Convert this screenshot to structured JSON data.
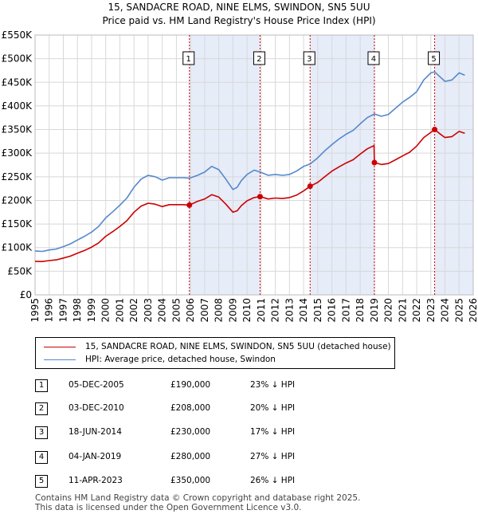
{
  "title_line1": "15, SANDACRE ROAD, NINE ELMS, SWINDON, SN5 5UU",
  "title_line2": "Price paid vs. HM Land Registry's House Price Index (HPI)",
  "colors": {
    "property": "#cc0000",
    "hpi": "#5588cc",
    "shade": "#e6ecf8",
    "grid": "#d8d8d8",
    "marker_line": "#cc0000"
  },
  "legend": {
    "property_label": "15, SANDACRE ROAD, NINE ELMS, SWINDON, SN5 5UU (detached house)",
    "hpi_label": "HPI: Average price, detached house, Swindon"
  },
  "chart_data": {
    "type": "line",
    "ylim": [
      0,
      550000
    ],
    "xlim": [
      1995,
      2026
    ],
    "y_ticks": [
      0,
      50000,
      100000,
      150000,
      200000,
      250000,
      300000,
      350000,
      400000,
      450000,
      500000,
      550000
    ],
    "y_tick_labels": [
      "£0",
      "£50K",
      "£100K",
      "£150K",
      "£200K",
      "£250K",
      "£300K",
      "£350K",
      "£400K",
      "£450K",
      "£500K",
      "£550K"
    ],
    "x_ticks": [
      1995,
      1996,
      1997,
      1998,
      1999,
      2000,
      2001,
      2002,
      2003,
      2004,
      2005,
      2006,
      2007,
      2008,
      2009,
      2010,
      2011,
      2012,
      2013,
      2014,
      2015,
      2016,
      2017,
      2018,
      2019,
      2020,
      2021,
      2022,
      2023,
      2024,
      2025,
      2026
    ],
    "x_tick_labels": [
      "1995",
      "1996",
      "1997",
      "1998",
      "1999",
      "2000",
      "2001",
      "2002",
      "2003",
      "2004",
      "2005",
      "2006",
      "2007",
      "2008",
      "2009",
      "2010",
      "2011",
      "2012",
      "2013",
      "2014",
      "2015",
      "2016",
      "2017",
      "2018",
      "2019",
      "2020",
      "2021",
      "2022",
      "2023",
      "2024",
      "2025",
      "2026"
    ],
    "hpi_series": {
      "name": "HPI: Average price, detached house, Swindon",
      "x": [
        1995.0,
        1995.5,
        1996.0,
        1996.5,
        1997.0,
        1997.5,
        1998.0,
        1998.5,
        1999.0,
        1999.5,
        2000.0,
        2000.5,
        2001.0,
        2001.5,
        2002.0,
        2002.5,
        2003.0,
        2003.5,
        2004.0,
        2004.5,
        2005.0,
        2005.5,
        2005.92,
        2006.5,
        2007.0,
        2007.5,
        2008.0,
        2008.5,
        2009.0,
        2009.3,
        2009.6,
        2010.0,
        2010.5,
        2010.92,
        2011.5,
        2012.0,
        2012.5,
        2013.0,
        2013.5,
        2014.0,
        2014.46,
        2015.0,
        2015.5,
        2016.0,
        2016.5,
        2017.0,
        2017.5,
        2018.0,
        2018.5,
        2019.01,
        2019.5,
        2020.0,
        2020.5,
        2021.0,
        2021.5,
        2022.0,
        2022.5,
        2023.0,
        2023.27,
        2023.6,
        2024.0,
        2024.5,
        2025.0,
        2025.4
      ],
      "values": [
        93000,
        92000,
        95000,
        97000,
        102000,
        108000,
        116000,
        124000,
        133000,
        145000,
        163000,
        176000,
        190000,
        205000,
        228000,
        245000,
        253000,
        250000,
        243000,
        248000,
        248000,
        248000,
        247000,
        253000,
        260000,
        272000,
        265000,
        245000,
        223000,
        228000,
        242000,
        255000,
        264000,
        260000,
        253000,
        255000,
        253000,
        255000,
        262000,
        272000,
        277000,
        290000,
        305000,
        318000,
        330000,
        340000,
        348000,
        362000,
        375000,
        383000,
        378000,
        382000,
        395000,
        408000,
        418000,
        430000,
        455000,
        470000,
        472000,
        463000,
        452000,
        455000,
        470000,
        465000
      ]
    },
    "property_series": {
      "name": "15, SANDACRE ROAD, NINE ELMS, SWINDON, SN5 5UU (detached house)",
      "x": [
        1995.0,
        1995.5,
        1996.0,
        1996.5,
        1997.0,
        1997.5,
        1998.0,
        1998.5,
        1999.0,
        1999.5,
        2000.0,
        2000.5,
        2001.0,
        2001.5,
        2002.0,
        2002.5,
        2003.0,
        2003.5,
        2004.0,
        2004.5,
        2005.0,
        2005.5,
        2005.92,
        2006.5,
        2007.0,
        2007.5,
        2008.0,
        2008.5,
        2009.0,
        2009.3,
        2009.6,
        2010.0,
        2010.5,
        2010.92,
        2011.5,
        2012.0,
        2012.5,
        2013.0,
        2013.5,
        2014.0,
        2014.46,
        2015.0,
        2015.5,
        2016.0,
        2016.5,
        2017.0,
        2017.5,
        2018.0,
        2018.5,
        2018.98,
        2019.01,
        2019.5,
        2020.0,
        2020.5,
        2021.0,
        2021.5,
        2022.0,
        2022.5,
        2023.0,
        2023.27,
        2023.6,
        2024.0,
        2024.5,
        2025.0,
        2025.4
      ],
      "values": [
        71000,
        70500,
        72500,
        74000,
        78000,
        82000,
        88000,
        94000,
        101000,
        110000,
        124000,
        134000,
        145000,
        157000,
        175000,
        188000,
        194000,
        192000,
        187000,
        191000,
        191000,
        191000,
        190000,
        198000,
        203000,
        212000,
        207000,
        192000,
        175000,
        178000,
        189000,
        199000,
        206000,
        208000,
        203000,
        205000,
        204000,
        206000,
        211000,
        220000,
        230000,
        238000,
        250000,
        262000,
        271000,
        279000,
        286000,
        298000,
        309000,
        316000,
        280000,
        276000,
        278000,
        286000,
        294000,
        302000,
        315000,
        333000,
        344000,
        350000,
        342000,
        333000,
        335000,
        346000,
        342000
      ]
    },
    "sales": [
      {
        "label": "1",
        "x": 2005.92,
        "value": 190000
      },
      {
        "label": "2",
        "x": 2010.92,
        "value": 208000
      },
      {
        "label": "3",
        "x": 2014.46,
        "value": 230000
      },
      {
        "label": "4",
        "x": 2019.01,
        "value": 280000
      },
      {
        "label": "5",
        "x": 2023.27,
        "value": 350000
      }
    ],
    "shaded_ranges": [
      [
        2005.92,
        2010.92
      ],
      [
        2014.46,
        2019.01
      ],
      [
        2023.27,
        2026
      ]
    ]
  },
  "transactions": [
    {
      "num": "1",
      "date": "05-DEC-2005",
      "price": "£190,000",
      "hpi": "23% ↓ HPI"
    },
    {
      "num": "2",
      "date": "03-DEC-2010",
      "price": "£208,000",
      "hpi": "20% ↓ HPI"
    },
    {
      "num": "3",
      "date": "18-JUN-2014",
      "price": "£230,000",
      "hpi": "17% ↓ HPI"
    },
    {
      "num": "4",
      "date": "04-JAN-2019",
      "price": "£280,000",
      "hpi": "27% ↓ HPI"
    },
    {
      "num": "5",
      "date": "11-APR-2023",
      "price": "£350,000",
      "hpi": "26% ↓ HPI"
    }
  ],
  "footer": {
    "line1": "Contains HM Land Registry data © Crown copyright and database right 2025.",
    "line2": "This data is licensed under the Open Government Licence v3.0."
  }
}
